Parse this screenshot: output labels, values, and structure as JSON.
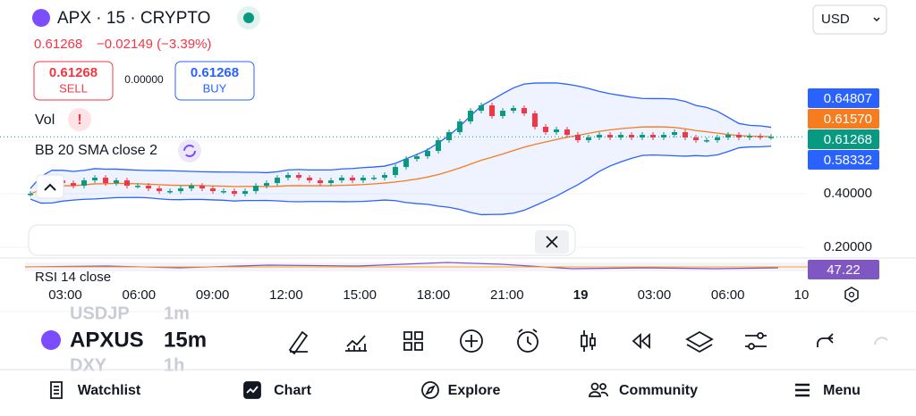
{
  "header": {
    "symbol": "APX · 15 · CRYPTO",
    "currency": "USD"
  },
  "quote": {
    "price": "0.61268",
    "change": "−0.02149 (−3.39%)"
  },
  "trade": {
    "sell_price": "0.61268",
    "sell": "SELL",
    "spread": "0.00000",
    "buy_price": "0.61268",
    "buy": "BUY"
  },
  "indicators": {
    "vol": "Vol",
    "bb": "BB 20 SMA close 2",
    "rsi": "RSI 14 close"
  },
  "chart_data": {
    "type": "candlestick",
    "closes": [
      0.4,
      0.43,
      0.45,
      0.44,
      0.43,
      0.45,
      0.46,
      0.44,
      0.45,
      0.43,
      0.43,
      0.42,
      0.41,
      0.41,
      0.42,
      0.43,
      0.42,
      0.41,
      0.41,
      0.4,
      0.41,
      0.43,
      0.44,
      0.46,
      0.47,
      0.46,
      0.45,
      0.44,
      0.45,
      0.46,
      0.45,
      0.46,
      0.46,
      0.47,
      0.5,
      0.53,
      0.54,
      0.56,
      0.6,
      0.63,
      0.67,
      0.71,
      0.73,
      0.69,
      0.71,
      0.72,
      0.7,
      0.65,
      0.63,
      0.64,
      0.62,
      0.6,
      0.61,
      0.62,
      0.61,
      0.62,
      0.61,
      0.62,
      0.61,
      0.62,
      0.63,
      0.61,
      0.6,
      0.6,
      0.61,
      0.62,
      0.61,
      0.615,
      0.612,
      0.61268
    ],
    "up_color": "#089981",
    "down_color": "#f23645",
    "ylim": [
      0.157,
      0.99
    ],
    "yticks": [
      {
        "value": 0.2,
        "label": "0.20000"
      },
      {
        "value": 0.4,
        "label": "0.40000"
      }
    ],
    "price_labels": [
      {
        "value": 0.64807,
        "label": "0.64807",
        "color": "#2962ff"
      },
      {
        "value": 0.6157,
        "label": "0.61570",
        "color": "#f57c1f"
      },
      {
        "value": 0.61268,
        "label": "0.61268",
        "color": "#089981"
      },
      {
        "value": 0.58332,
        "label": "0.58332",
        "color": "#2962ff"
      }
    ],
    "rsi_label": "47.22",
    "xticks": [
      "03:00",
      "06:00",
      "09:00",
      "12:00",
      "15:00",
      "18:00",
      "21:00",
      "19",
      "03:00",
      "06:00",
      "10"
    ]
  },
  "toolbar": {
    "symbol_prev": "USDJP",
    "symbol": "APXUS",
    "symbol_next": "DXY",
    "interval_prev": "1m",
    "interval": "15m",
    "interval_next": "1h"
  },
  "nav": [
    "Watchlist",
    "Chart",
    "Explore",
    "Community",
    "Menu"
  ]
}
